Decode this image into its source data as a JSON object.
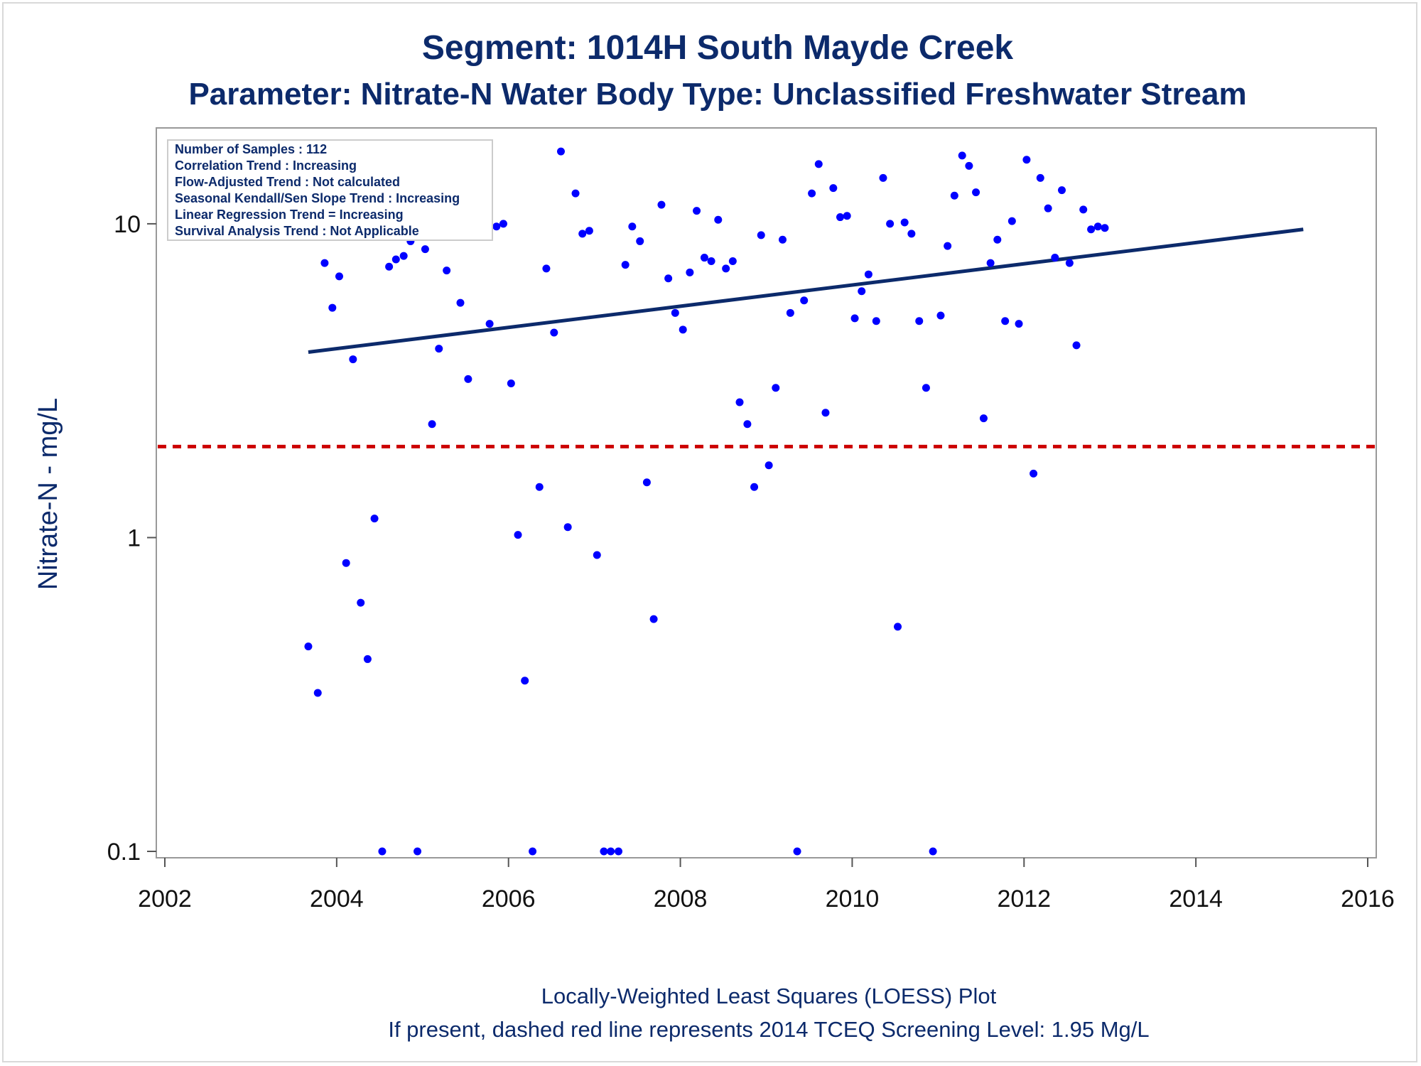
{
  "colors": {
    "text": "#0c2a6b",
    "points": "#0000ff",
    "trend_line": "#0c2a6b",
    "screening_line": "#cc0000",
    "plot_border": "#999999"
  },
  "chart_data": {
    "type": "scatter",
    "title": "Segment: 1014H  South Mayde Creek",
    "subtitle": "Parameter: Nitrate-N   Water Body Type: Unclassified Freshwater Stream",
    "xlabel": "",
    "ylabel": "Nitrate-N - mg/L",
    "xlim": [
      2002,
      2016
    ],
    "ylim": [
      0.1,
      20
    ],
    "yscale": "log",
    "x_ticks": [
      "2002",
      "2004",
      "2006",
      "2008",
      "2010",
      "2012",
      "2014",
      "2016"
    ],
    "y_ticks": [
      "0.1",
      "1",
      "10"
    ],
    "grid": false,
    "stats_box": [
      "Number of Samples : 112",
      "Correlation Trend : Increasing",
      "Flow-Adjusted Trend : Not calculated",
      "Seasonal Kendall/Sen Slope Trend : Increasing",
      "Linear Regression Trend = Increasing",
      "Survival Analysis Trend : Not Applicable"
    ],
    "footnotes": [
      "Locally-Weighted Least Squares (LOESS) Plot",
      "If present, dashed red line represents 2014 TCEQ Screening Level: 1.95 Mg/L"
    ],
    "screening_level": 1.95,
    "trend_line": {
      "x": [
        2003.67,
        2015.25
      ],
      "y": [
        3.9,
        9.6
      ]
    },
    "series": [
      {
        "x": [
          2003.67,
          2003.78,
          2003.86,
          2003.95,
          2004.03,
          2004.11,
          2004.19,
          2004.28,
          2004.36,
          2004.44,
          2004.53,
          2004.61,
          2004.69,
          2004.78,
          2004.86,
          2004.94,
          2005.03,
          2005.11,
          2005.19,
          2005.28,
          2005.36,
          2005.44,
          2005.53,
          2005.61,
          2005.69,
          2005.78,
          2005.86,
          2005.94,
          2006.03,
          2006.11,
          2006.19,
          2006.28,
          2006.36,
          2006.44,
          2006.53,
          2006.61,
          2006.69,
          2006.78,
          2006.86,
          2006.94,
          2007.03,
          2007.11,
          2007.19,
          2007.28,
          2007.36,
          2007.44,
          2007.53,
          2007.61,
          2007.69,
          2007.78,
          2007.86,
          2007.94,
          2008.03,
          2008.11,
          2008.19,
          2008.28,
          2008.36,
          2008.44,
          2008.53,
          2008.61,
          2008.69,
          2008.78,
          2008.86,
          2008.94,
          2009.03,
          2009.11,
          2009.19,
          2009.28,
          2009.36,
          2009.44,
          2009.53,
          2009.61,
          2009.69,
          2009.78,
          2009.86,
          2009.94,
          2010.03,
          2010.11,
          2010.19,
          2010.28,
          2010.36,
          2010.44,
          2010.53,
          2010.61,
          2010.69,
          2010.78,
          2010.86,
          2010.94,
          2011.03,
          2011.11,
          2011.19,
          2011.28,
          2011.36,
          2011.44,
          2011.53,
          2011.61,
          2011.69,
          2011.78,
          2011.86,
          2011.94,
          2012.03,
          2012.11,
          2012.19,
          2012.28,
          2012.36,
          2012.44,
          2012.53,
          2012.61,
          2012.69,
          2012.78,
          2012.86,
          2012.94
        ],
        "y": [
          0.45,
          0.32,
          7.5,
          5.4,
          6.8,
          0.83,
          3.7,
          0.62,
          0.41,
          1.15,
          0.1,
          7.3,
          7.7,
          7.9,
          8.8,
          0.1,
          8.3,
          2.3,
          4.0,
          7.1,
          9.2,
          5.6,
          3.2,
          9.4,
          9.5,
          4.8,
          9.8,
          10.0,
          3.1,
          1.02,
          0.35,
          0.1,
          1.45,
          7.2,
          4.5,
          17.0,
          1.08,
          12.5,
          9.3,
          9.5,
          0.88,
          0.1,
          0.1,
          0.1,
          7.4,
          9.8,
          8.8,
          1.5,
          0.55,
          11.5,
          6.7,
          5.2,
          4.6,
          7.0,
          11.0,
          7.8,
          7.6,
          10.3,
          7.2,
          7.6,
          2.7,
          2.3,
          1.45,
          9.2,
          1.7,
          3.0,
          8.9,
          5.2,
          0.1,
          5.7,
          12.5,
          15.5,
          2.5,
          13.0,
          10.5,
          10.6,
          5.0,
          6.1,
          6.9,
          4.9,
          14.0,
          10.0,
          0.52,
          10.1,
          9.3,
          4.9,
          3.0,
          0.1,
          5.1,
          8.5,
          12.3,
          16.5,
          15.3,
          12.6,
          2.4,
          7.5,
          8.9,
          4.9,
          10.2,
          4.8,
          16.0,
          1.6,
          14.0,
          11.2,
          7.8,
          12.8,
          7.5,
          4.1,
          11.1,
          9.6,
          9.8,
          9.7
        ]
      }
    ]
  }
}
